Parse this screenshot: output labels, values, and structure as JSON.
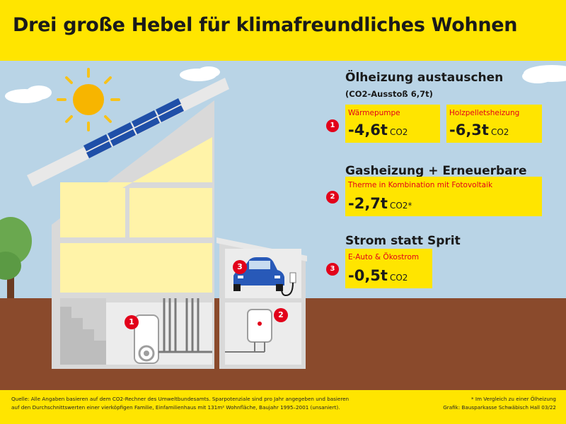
{
  "title": "Drei große Hebel für klimafreundliches Wohnen",
  "section1": {
    "heading": "Ölheizung austauschen",
    "subheading": "(CO2-Ausstoß 6,7t)",
    "badge": "1",
    "options": [
      {
        "label": "Wärmepumpe",
        "value": "-4,6t",
        "unit": "CO2"
      },
      {
        "label": "Holzpelletsheizung",
        "value": "-6,3t",
        "unit": "CO2"
      }
    ]
  },
  "section2": {
    "heading": "Gasheizung + Erneuerbare",
    "badge": "2",
    "label": "Therme in Kombination mit Fotovoltaik",
    "value": "-2,7t",
    "unit": "CO2*"
  },
  "section3": {
    "heading": "Strom statt Sprit",
    "badge": "3",
    "label": "E-Auto & Ökostrom",
    "value": "-0,5t",
    "unit": "CO2"
  },
  "illustration_badges": [
    "1",
    "2",
    "3"
  ],
  "footer": {
    "source_line1": "Quelle: Alle Angaben basieren auf dem CO2-Rechner des Umweltbundesamts. Sparpotenziale sind pro Jahr angegeben und basieren",
    "source_line2": "auf den Durchschnittswerten einer vierköpfigen Familie, Einfamilienhaus mit 131m² Wohnfläche, Baujahr 1995–2001 (unsaniert).",
    "footnote": "* Im Vergleich zu einer Ölheizung",
    "credit": "Grafik: Bausparkasse Schwäbisch Hall 03/22"
  },
  "colors": {
    "yellow": "#ffe500",
    "sky": "#b9d4e6",
    "ground": "#8a4a2c",
    "red": "#e2001a",
    "wall": "#d9d9d9",
    "window": "#fff3a8"
  }
}
